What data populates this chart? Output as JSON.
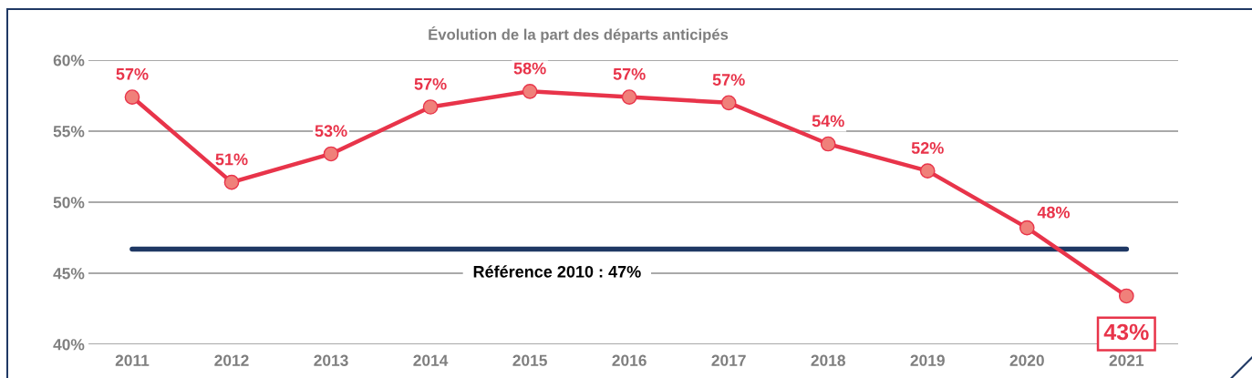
{
  "chart_data": {
    "type": "line",
    "title": "Évolution de la part des départs anticipés",
    "categories": [
      "2011",
      "2012",
      "2013",
      "2014",
      "2015",
      "2016",
      "2017",
      "2018",
      "2019",
      "2020",
      "2021"
    ],
    "series": [
      {
        "color": "#e8344a",
        "values": [
          57.4,
          51.4,
          53.4,
          56.7,
          57.8,
          57.4,
          57.0,
          54.1,
          52.2,
          48.2,
          43.4
        ],
        "value_labels": [
          "57%",
          "51%",
          "53%",
          "57%",
          "58%",
          "57%",
          "57%",
          "54%",
          "52%",
          "48%",
          "43%"
        ]
      }
    ],
    "ylim": [
      40,
      60
    ],
    "yticks": [
      {
        "value": 40,
        "label": "40%"
      },
      {
        "value": 45,
        "label": "45%"
      },
      {
        "value": 50,
        "label": "50%"
      },
      {
        "value": 55,
        "label": "55%"
      },
      {
        "value": 60,
        "label": "60%"
      }
    ],
    "ref_lines": [
      {
        "axis": "y",
        "value": 46.7,
        "label": "Référence 2010 : 47%",
        "color": "#1f3864",
        "line_style": "solid"
      }
    ],
    "grid": "y",
    "marker": "circle",
    "line_style": "solid"
  }
}
